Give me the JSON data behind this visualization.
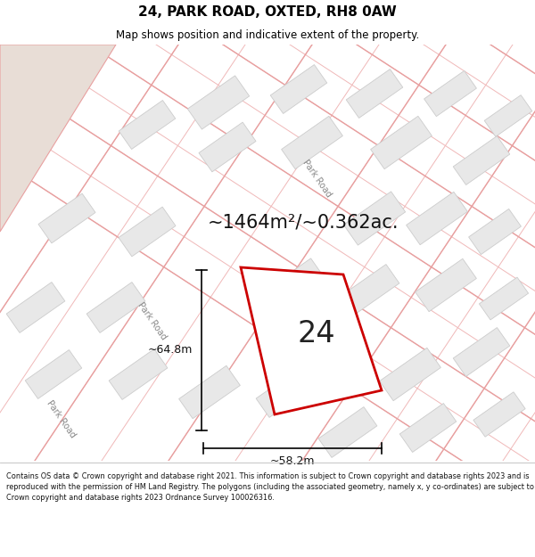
{
  "title": "24, PARK ROAD, OXTED, RH8 0AW",
  "subtitle": "Map shows position and indicative extent of the property.",
  "footer": "Contains OS data © Crown copyright and database right 2021. This information is subject to Crown copyright and database rights 2023 and is reproduced with the permission of HM Land Registry. The polygons (including the associated geometry, namely x, y co-ordinates) are subject to Crown copyright and database rights 2023 Ordnance Survey 100026316.",
  "map_bg": "#ffffff",
  "top_left_bg": "#e8ddd6",
  "plot_color": "#cc0000",
  "plot_label": "24",
  "area_text": "~1464m²/~0.362ac.",
  "dim_width_text": "~58.2m",
  "dim_height_text": "~64.8m",
  "road_label": "Park Road",
  "grid_lines_color": "#f0b8b8",
  "grid_lines_color2": "#e8a0a0",
  "building_fill": "#e8e8e8",
  "building_stroke": "#cccccc",
  "title_fontsize": 11,
  "subtitle_fontsize": 8.5,
  "area_fontsize": 15,
  "plot_label_fontsize": 24,
  "dim_fontsize": 9,
  "road_fontsize": 7
}
